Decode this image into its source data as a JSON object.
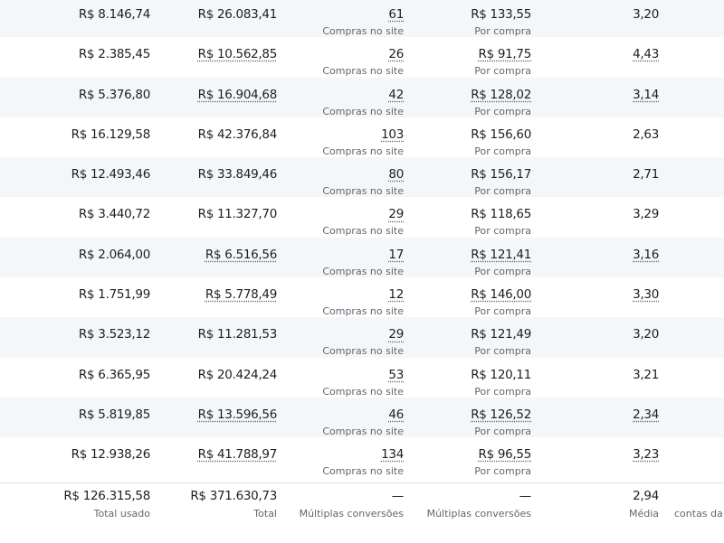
{
  "labels": {
    "results": "Compras no site",
    "cost": "Por compra"
  },
  "rows": [
    {
      "spent": "R$ 8.146,74",
      "value": "R$ 26.083,41",
      "purchases": "61",
      "cost": "R$ 133,55",
      "roas": "3,20",
      "dotted": false
    },
    {
      "spent": "R$ 2.385,45",
      "value": "R$ 10.562,85",
      "purchases": "26",
      "cost": "R$ 91,75",
      "roas": "4,43",
      "dotted": true
    },
    {
      "spent": "R$ 5.376,80",
      "value": "R$ 16.904,68",
      "purchases": "42",
      "cost": "R$ 128,02",
      "roas": "3,14",
      "dotted": true
    },
    {
      "spent": "R$ 16.129,58",
      "value": "R$ 42.376,84",
      "purchases": "103",
      "cost": "R$ 156,60",
      "roas": "2,63",
      "dotted": false
    },
    {
      "spent": "R$ 12.493,46",
      "value": "R$ 33.849,46",
      "purchases": "80",
      "cost": "R$ 156,17",
      "roas": "2,71",
      "dotted": false
    },
    {
      "spent": "R$ 3.440,72",
      "value": "R$ 11.327,70",
      "purchases": "29",
      "cost": "R$ 118,65",
      "roas": "3,29",
      "dotted": false
    },
    {
      "spent": "R$ 2.064,00",
      "value": "R$ 6.516,56",
      "purchases": "17",
      "cost": "R$ 121,41",
      "roas": "3,16",
      "dotted": true
    },
    {
      "spent": "R$ 1.751,99",
      "value": "R$ 5.778,49",
      "purchases": "12",
      "cost": "R$ 146,00",
      "roas": "3,30",
      "dotted": true
    },
    {
      "spent": "R$ 3.523,12",
      "value": "R$ 11.281,53",
      "purchases": "29",
      "cost": "R$ 121,49",
      "roas": "3,20",
      "dotted": false
    },
    {
      "spent": "R$ 6.365,95",
      "value": "R$ 20.424,24",
      "purchases": "53",
      "cost": "R$ 120,11",
      "roas": "3,21",
      "dotted": false
    },
    {
      "spent": "R$ 5.819,85",
      "value": "R$ 13.596,56",
      "purchases": "46",
      "cost": "R$ 126,52",
      "roas": "2,34",
      "dotted": true
    },
    {
      "spent": "R$ 12.938,26",
      "value": "R$ 41.788,97",
      "purchases": "134",
      "cost": "R$ 96,55",
      "roas": "3,23",
      "dotted": true
    }
  ],
  "totals": {
    "spent": "R$ 126.315,58",
    "spent_label": "Total usado",
    "value": "R$ 371.630,73",
    "value_label": "Total",
    "purchases": "—",
    "purchases_label": "Múltiplas conversões",
    "cost": "—",
    "cost_label": "Múltiplas conversões",
    "roas": "2,94",
    "roas_label": "Média",
    "extra_label": "contas da c"
  }
}
